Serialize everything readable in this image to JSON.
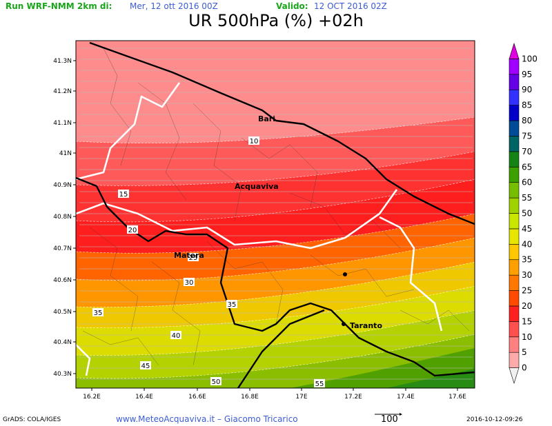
{
  "header": {
    "run_label": "Run WRF-NMM 2km di:",
    "run_date": "Mer, 12 ott 2016 00Z",
    "valid_label": "Valido:",
    "valid_date": "12 OCT 2016 02Z",
    "title": "UR 500hPa (%) +02h"
  },
  "map": {
    "lon_ticks": [
      "16.2E",
      "16.4E",
      "16.6E",
      "16.8E",
      "17E",
      "17.2E",
      "17.4E",
      "17.6E"
    ],
    "lat_ticks": [
      "41.3N",
      "41.2N",
      "41.1N",
      "41N",
      "40.9N",
      "40.8N",
      "40.7N",
      "40.6N",
      "40.5N",
      "40.4N",
      "40.3N"
    ],
    "place_names": {
      "bari": "Bari",
      "acquaviva": "Acquaviva",
      "matera": "Matera",
      "taranto": "Taranto"
    },
    "contour_labels": [
      "10",
      "15",
      "20",
      "25",
      "30",
      "35",
      "35",
      "40",
      "45",
      "50",
      "55"
    ]
  },
  "legend": {
    "levels": [
      "100",
      "95",
      "90",
      "85",
      "80",
      "75",
      "70",
      "65",
      "60",
      "55",
      "50",
      "45",
      "40",
      "35",
      "30",
      "25",
      "20",
      "15",
      "10",
      "5",
      "0"
    ],
    "colors": [
      "#f0f0f0",
      "#ffaaaa",
      "#ff8080",
      "#ff5050",
      "#ff2020",
      "#ff4a00",
      "#ff7800",
      "#ffa000",
      "#ffc800",
      "#e6e600",
      "#c8e600",
      "#a0d200",
      "#78be00",
      "#3ca000",
      "#148214",
      "#006464",
      "#004b96",
      "#0000c8",
      "#3232ff",
      "#6400e6",
      "#a000ff",
      "#e000e0"
    ]
  },
  "footer": {
    "left": "GrADS: COLA/IGES",
    "center": "www.MeteoAcquaviva.it – Giacomo Tricarico",
    "vector_ref": "100",
    "timestamp": "2016-10-12-09:26"
  }
}
